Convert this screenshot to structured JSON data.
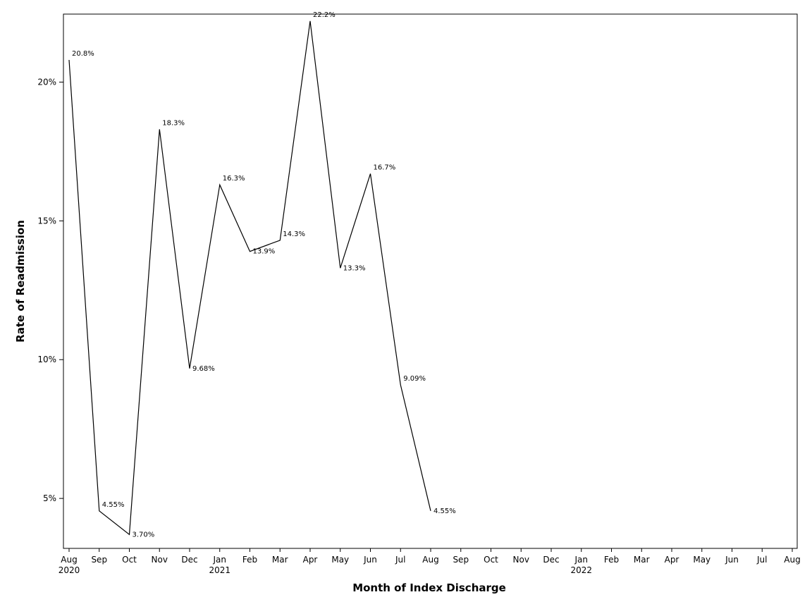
{
  "chart_data": {
    "type": "line",
    "title": "",
    "xlabel": "Month of Index Discharge",
    "ylabel": "Rate of Readmission",
    "x_ticks": [
      {
        "month": "Aug",
        "year": "2020"
      },
      {
        "month": "Sep",
        "year": ""
      },
      {
        "month": "Oct",
        "year": ""
      },
      {
        "month": "Nov",
        "year": ""
      },
      {
        "month": "Dec",
        "year": ""
      },
      {
        "month": "Jan",
        "year": "2021"
      },
      {
        "month": "Feb",
        "year": ""
      },
      {
        "month": "Mar",
        "year": ""
      },
      {
        "month": "Apr",
        "year": ""
      },
      {
        "month": "May",
        "year": ""
      },
      {
        "month": "Jun",
        "year": ""
      },
      {
        "month": "Jul",
        "year": ""
      },
      {
        "month": "Aug",
        "year": ""
      },
      {
        "month": "Sep",
        "year": ""
      },
      {
        "month": "Oct",
        "year": ""
      },
      {
        "month": "Nov",
        "year": ""
      },
      {
        "month": "Dec",
        "year": ""
      },
      {
        "month": "Jan",
        "year": "2022"
      },
      {
        "month": "Feb",
        "year": ""
      },
      {
        "month": "Mar",
        "year": ""
      },
      {
        "month": "Apr",
        "year": ""
      },
      {
        "month": "May",
        "year": ""
      },
      {
        "month": "Jun",
        "year": ""
      },
      {
        "month": "Jul",
        "year": ""
      },
      {
        "month": "Aug",
        "year": ""
      }
    ],
    "xlim": [
      "2020-08",
      "2022-08"
    ],
    "y_ticks": [
      {
        "value": 5,
        "label": "5%"
      },
      {
        "value": 10,
        "label": "10%"
      },
      {
        "value": 15,
        "label": "15%"
      },
      {
        "value": 20,
        "label": "20%"
      }
    ],
    "ylim": [
      3.2,
      22.45
    ],
    "grid": false,
    "legend": "none",
    "series": [
      {
        "color": "#000000",
        "points": [
          {
            "x": "2020-08",
            "value": 20.8,
            "label": "20.8%"
          },
          {
            "x": "2020-09",
            "value": 4.55,
            "label": "4.55%"
          },
          {
            "x": "2020-10",
            "value": 3.7,
            "label": "3.70%"
          },
          {
            "x": "2020-11",
            "value": 18.3,
            "label": "18.3%"
          },
          {
            "x": "2020-12",
            "value": 9.68,
            "label": "9.68%"
          },
          {
            "x": "2021-01",
            "value": 16.3,
            "label": "16.3%"
          },
          {
            "x": "2021-02",
            "value": 13.9,
            "label": "13.9%"
          },
          {
            "x": "2021-03",
            "value": 14.3,
            "label": "14.3%"
          },
          {
            "x": "2021-04",
            "value": 22.2,
            "label": "22.2%"
          },
          {
            "x": "2021-05",
            "value": 13.3,
            "label": "13.3%"
          },
          {
            "x": "2021-06",
            "value": 16.7,
            "label": "16.7%"
          },
          {
            "x": "2021-07",
            "value": 9.09,
            "label": "9.09%"
          },
          {
            "x": "2021-08",
            "value": 4.55,
            "label": "4.55%"
          }
        ]
      }
    ]
  }
}
